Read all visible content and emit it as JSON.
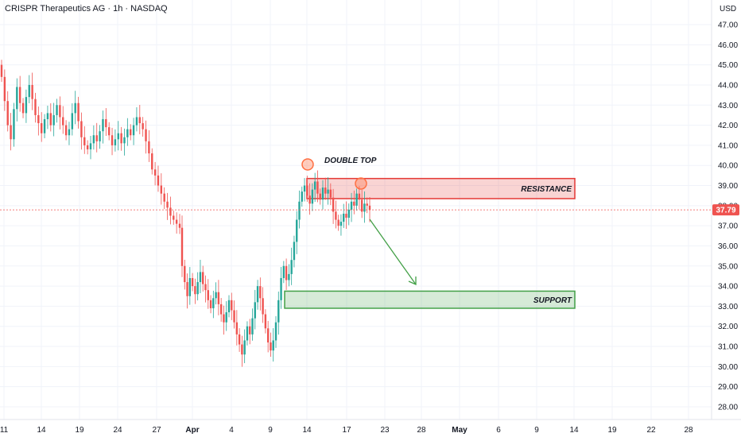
{
  "header": {
    "symbol_line": "CRISPR Therapeutics AG · 1h · NASDAQ",
    "currency": "USD"
  },
  "last_price": "37.79",
  "colors": {
    "up": "#26a69a",
    "down": "#ef5350",
    "resistance": "#e53935",
    "support": "#43a047",
    "marker": "#ff7043",
    "price_tag": "#ef5350"
  },
  "chart_data": {
    "type": "candlestick",
    "ylim": [
      27.5,
      48
    ],
    "y_ticks": [
      "28.00",
      "29.00",
      "30.00",
      "31.00",
      "32.00",
      "33.00",
      "34.00",
      "35.00",
      "36.00",
      "37.00",
      "38.00",
      "39.00",
      "40.00",
      "41.00",
      "42.00",
      "43.00",
      "44.00",
      "45.00",
      "46.00",
      "47.00"
    ],
    "x_ticks": [
      {
        "label": "11",
        "strong": false
      },
      {
        "label": "14",
        "strong": false
      },
      {
        "label": "19",
        "strong": false
      },
      {
        "label": "24",
        "strong": false
      },
      {
        "label": "27",
        "strong": false
      },
      {
        "label": "Apr",
        "strong": true
      },
      {
        "label": "4",
        "strong": false
      },
      {
        "label": "9",
        "strong": false
      },
      {
        "label": "14",
        "strong": false
      },
      {
        "label": "17",
        "strong": false
      },
      {
        "label": "23",
        "strong": false
      },
      {
        "label": "28",
        "strong": false
      },
      {
        "label": "May",
        "strong": true
      },
      {
        "label": "6",
        "strong": false
      },
      {
        "label": "9",
        "strong": false
      },
      {
        "label": "14",
        "strong": false
      },
      {
        "label": "19",
        "strong": false
      },
      {
        "label": "22",
        "strong": false
      },
      {
        "label": "28",
        "strong": false
      }
    ],
    "closes": [
      44.4,
      43.2,
      42.0,
      41.3,
      42.8,
      43.9,
      43.1,
      42.6,
      43.4,
      44.0,
      43.3,
      42.5,
      42.1,
      41.6,
      42.3,
      42.6,
      42.0,
      42.5,
      43.0,
      42.4,
      42.0,
      41.5,
      41.8,
      42.6,
      43.1,
      42.2,
      41.4,
      41.0,
      40.8,
      41.1,
      41.5,
      41.2,
      41.7,
      42.3,
      41.9,
      41.5,
      41.0,
      41.3,
      41.6,
      41.1,
      41.4,
      41.8,
      41.5,
      42.0,
      42.4,
      42.1,
      41.8,
      41.2,
      40.6,
      39.8,
      39.5,
      39.0,
      38.6,
      38.2,
      37.9,
      37.5,
      37.3,
      37.1,
      36.9,
      35.0,
      34.2,
      33.5,
      34.4,
      34.0,
      33.6,
      34.2,
      34.7,
      34.1,
      33.8,
      33.3,
      32.9,
      33.4,
      33.7,
      33.1,
      32.6,
      32.2,
      32.7,
      33.3,
      32.8,
      32.2,
      31.6,
      31.1,
      30.6,
      31.3,
      32.0,
      31.6,
      32.4,
      33.2,
      34.0,
      33.4,
      32.6,
      31.9,
      31.2,
      30.8,
      31.3,
      32.2,
      33.3,
      34.4,
      35.0,
      34.3,
      34.6,
      35.3,
      36.2,
      37.3,
      38.2,
      38.7,
      39.0,
      38.5,
      38.1,
      38.8,
      39.2,
      38.6,
      38.3,
      38.9,
      38.6,
      38.8,
      38.4,
      37.7,
      37.3,
      37.0,
      37.2,
      37.6,
      37.4,
      37.8,
      38.2,
      38.0,
      38.6,
      38.3,
      37.7,
      38.1,
      38.0,
      37.79
    ],
    "annotations": {
      "double_top": "DOUBLE TOP",
      "resistance": "RESISTANCE",
      "support": "SUPPORT"
    },
    "resistance_zone": [
      38.35,
      39.35
    ],
    "support_zone": [
      32.9,
      33.75
    ]
  }
}
